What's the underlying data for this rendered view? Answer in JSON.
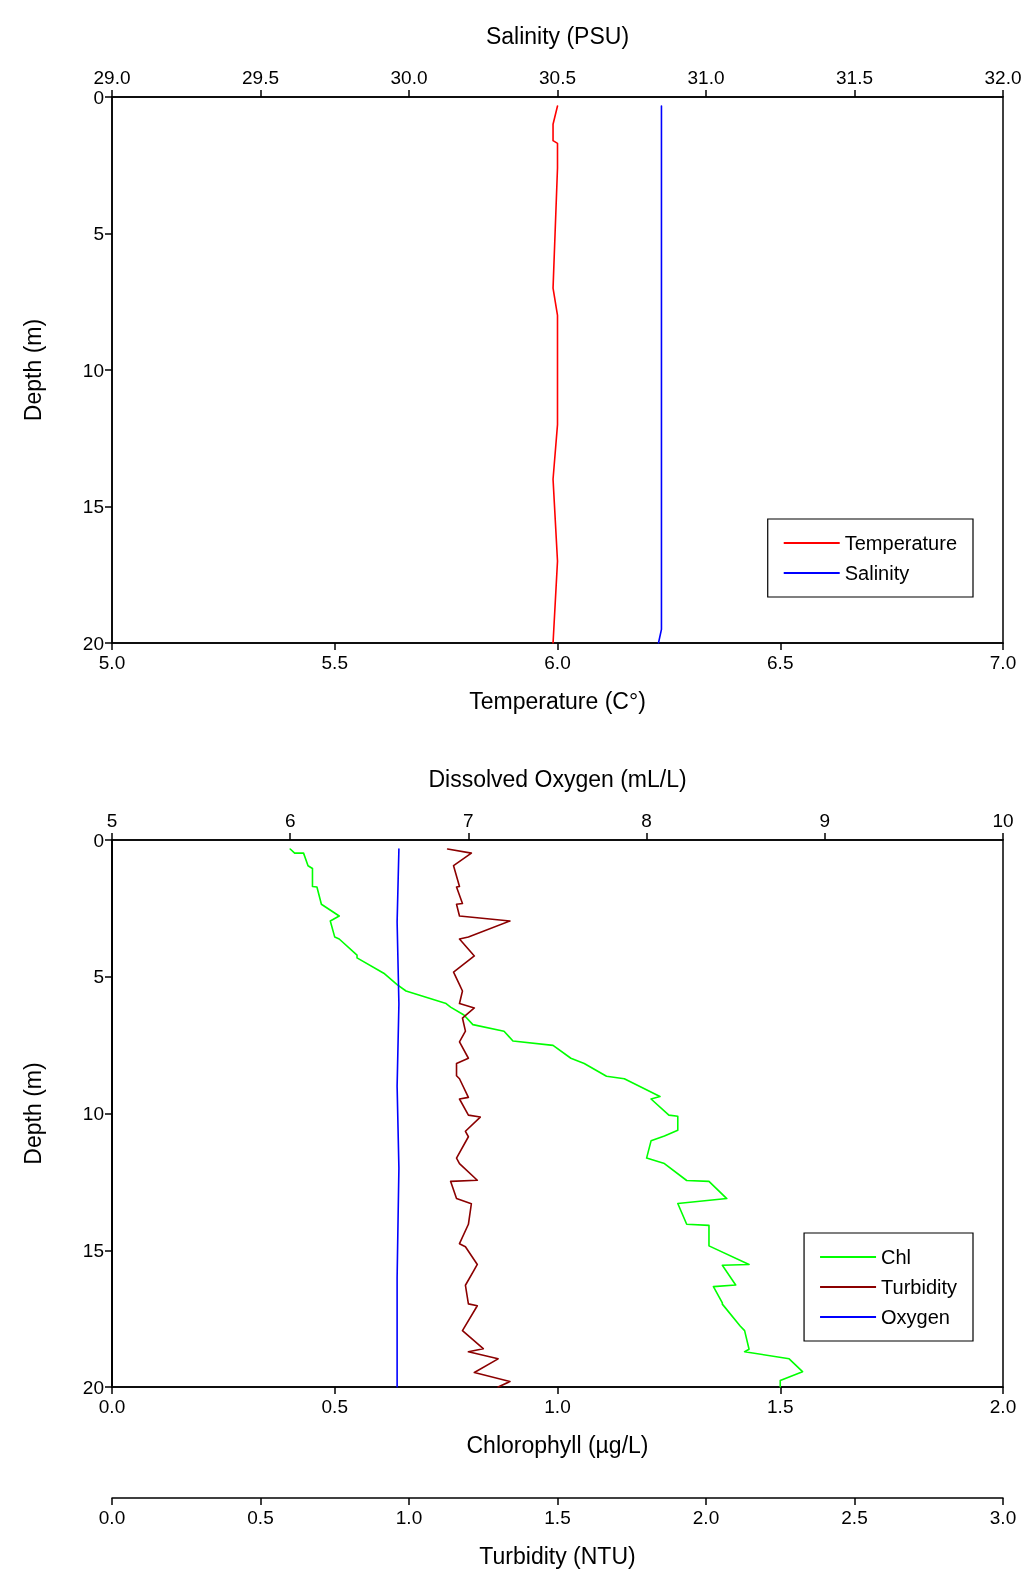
{
  "chart_data": [
    {
      "type": "line",
      "xlabel": "Temperature (C°)",
      "x2label": "Salinity (PSU)",
      "ylabel": "Depth (m)",
      "xlim": [
        5,
        7
      ],
      "xticks": [
        {
          "value": 5,
          "label": "5.0"
        },
        {
          "value": 5.5,
          "label": "5.5"
        },
        {
          "value": 6,
          "label": "6.0"
        },
        {
          "value": 6.5,
          "label": "6.5"
        },
        {
          "value": 7,
          "label": "7.0"
        }
      ],
      "x2lim": [
        29,
        32
      ],
      "x2ticks": [
        {
          "value": 29,
          "label": "29.0"
        },
        {
          "value": 29.5,
          "label": "29.5"
        },
        {
          "value": 30,
          "label": "30.0"
        },
        {
          "value": 30.5,
          "label": "30.5"
        },
        {
          "value": 31,
          "label": "31.0"
        },
        {
          "value": 31.5,
          "label": "31.5"
        },
        {
          "value": 32,
          "label": "32.0"
        }
      ],
      "ylim": [
        20,
        0
      ],
      "yticks": [
        0,
        5,
        10,
        15,
        20
      ],
      "legend": "bottom right",
      "series": [
        {
          "name": "Temperature",
          "color": "#ff0000",
          "x": [
            6.0,
            5.99,
            5.99,
            6.0,
            6.0,
            5.99,
            6.0,
            6.0,
            5.99,
            6.0,
            5.99
          ],
          "values": [
            0.33,
            1.0,
            1.6,
            1.7,
            2.6,
            7.0,
            8.0,
            12.0,
            14.0,
            17.0,
            20.0
          ]
        },
        {
          "name": "Salinity",
          "color": "#0000ff",
          "axis": "x2",
          "x": [
            30.85,
            30.85,
            30.85,
            30.84
          ],
          "values": [
            0.33,
            10,
            19.5,
            20
          ]
        }
      ]
    },
    {
      "type": "line",
      "xlabel": "Chlorophyll (µg/L)",
      "x2label": "Dissolved Oxygen (mL/L)",
      "ylabel": "Depth (m)",
      "xlim": [
        0,
        2
      ],
      "xticks": [
        {
          "value": 0,
          "label": "0.0"
        },
        {
          "value": 0.5,
          "label": "0.5"
        },
        {
          "value": 1,
          "label": "1.0"
        },
        {
          "value": 1.5,
          "label": "1.5"
        },
        {
          "value": 2,
          "label": "2.0"
        }
      ],
      "x2lim": [
        5,
        10
      ],
      "x2ticks": [
        5,
        6,
        7,
        8,
        9,
        10
      ],
      "ylim": [
        20,
        0
      ],
      "yticks": [
        0,
        5,
        10,
        15,
        20
      ],
      "legend": "bottom right",
      "series": [
        {
          "name": "Chl",
          "color": "#00ff00",
          "x": [
            0.4,
            0.41,
            0.43,
            0.44,
            0.45,
            0.45,
            0.46,
            0.47,
            0.51,
            0.49,
            0.5,
            0.51,
            0.55,
            0.55,
            0.61,
            0.64,
            0.66,
            0.75,
            0.76,
            0.79,
            0.81,
            0.88,
            0.9,
            0.99,
            1.03,
            1.06,
            1.11,
            1.15,
            1.23,
            1.21,
            1.25,
            1.27,
            1.27,
            1.24,
            1.21,
            1.2,
            1.24,
            1.29,
            1.34,
            1.38,
            1.27,
            1.29,
            1.34,
            1.34,
            1.43,
            1.37,
            1.4,
            1.35,
            1.37,
            1.37,
            1.41,
            1.42,
            1.43,
            1.42,
            1.52,
            1.55,
            1.5,
            1.5
          ],
          "values": [
            0.33,
            0.48,
            0.48,
            0.94,
            1.04,
            1.7,
            1.72,
            2.35,
            2.78,
            2.96,
            3.55,
            3.62,
            4.21,
            4.31,
            4.87,
            5.29,
            5.52,
            5.98,
            6.11,
            6.4,
            6.75,
            6.99,
            7.35,
            7.51,
            7.98,
            8.17,
            8.64,
            8.73,
            9.38,
            9.47,
            10.06,
            10.1,
            10.61,
            10.82,
            11.0,
            11.63,
            11.83,
            12.45,
            12.48,
            13.11,
            13.29,
            14.05,
            14.09,
            14.84,
            15.52,
            15.55,
            16.27,
            16.33,
            16.92,
            16.97,
            17.77,
            17.94,
            18.62,
            18.71,
            18.97,
            19.44,
            19.76,
            20.0
          ]
        },
        {
          "name": "Oxygen",
          "color": "#0000ff",
          "axis": "x2",
          "x": [
            6.61,
            6.6,
            6.61,
            6.6,
            6.61,
            6.6,
            6.6
          ],
          "values": [
            0.33,
            3.0,
            6.0,
            9.0,
            12.0,
            16.0,
            20.0
          ]
        }
      ]
    },
    {
      "type": "line",
      "xlabel": "Turbidity (NTU)",
      "tick_labels": "x",
      "xlim": [
        0,
        3
      ],
      "xticks": [
        {
          "value": 0,
          "label": "0.0"
        },
        {
          "value": 0.5,
          "label": "0.5"
        },
        {
          "value": 1,
          "label": "1.0"
        },
        {
          "value": 1.5,
          "label": "1.5"
        },
        {
          "value": 2,
          "label": "2.0"
        },
        {
          "value": 2.5,
          "label": "2.5"
        },
        {
          "value": 3,
          "label": "3.0"
        }
      ],
      "ylim": [
        20,
        0
      ],
      "series": [
        {
          "name": "Turbidity",
          "color": "#8b0000",
          "x": [
            1.13,
            1.21,
            1.15,
            1.17,
            1.16,
            1.18,
            1.16,
            1.17,
            1.34,
            1.2,
            1.17,
            1.22,
            1.15,
            1.17,
            1.18,
            1.17,
            1.22,
            1.18,
            1.19,
            1.17,
            1.2,
            1.16,
            1.16,
            1.17,
            1.2,
            1.17,
            1.2,
            1.24,
            1.19,
            1.2,
            1.16,
            1.17,
            1.23,
            1.14,
            1.16,
            1.21,
            1.2,
            1.2,
            1.17,
            1.19,
            1.23,
            1.19,
            1.2,
            1.23,
            1.18,
            1.25,
            1.2,
            1.3,
            1.22,
            1.34,
            1.3
          ],
          "values": [
            0.33,
            0.48,
            0.94,
            1.7,
            1.72,
            2.32,
            2.35,
            2.78,
            2.96,
            3.55,
            3.62,
            4.24,
            4.83,
            5.29,
            5.52,
            5.98,
            6.14,
            6.51,
            6.99,
            7.38,
            7.98,
            8.17,
            8.62,
            8.73,
            9.41,
            9.47,
            10.06,
            10.13,
            10.65,
            10.85,
            11.63,
            11.83,
            12.44,
            12.48,
            13.11,
            13.3,
            14.05,
            14.07,
            14.76,
            14.87,
            15.52,
            16.28,
            16.96,
            17.03,
            17.94,
            18.6,
            18.71,
            18.97,
            19.47,
            19.8,
            20.0
          ]
        }
      ]
    }
  ]
}
